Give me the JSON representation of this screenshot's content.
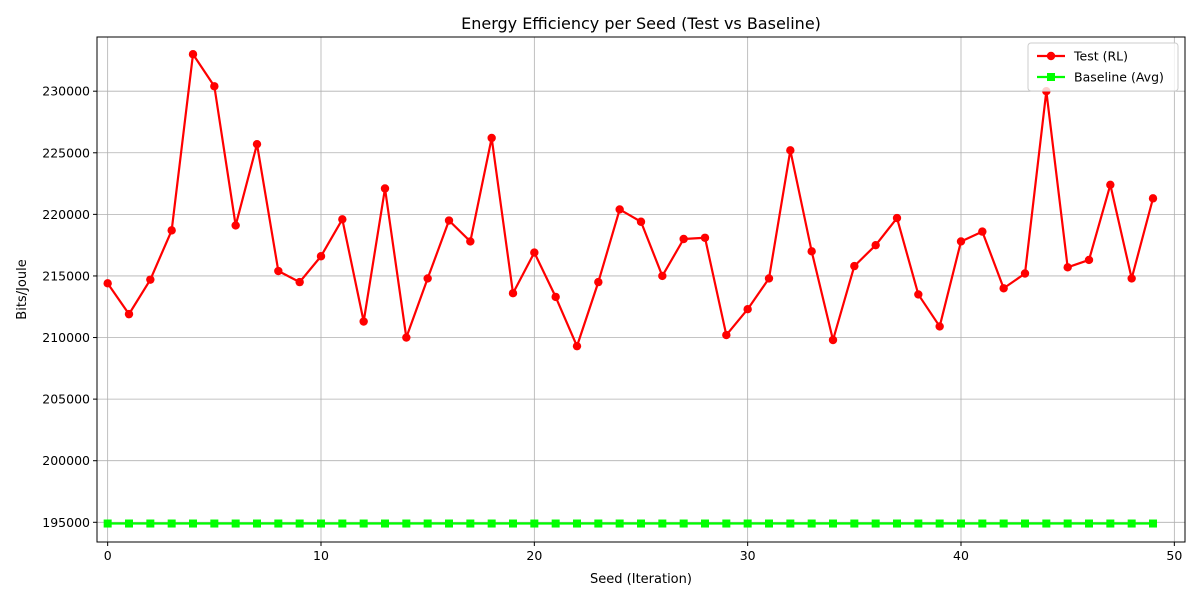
{
  "chart_data": {
    "type": "line",
    "title": "Energy Efficiency per Seed (Test vs Baseline)",
    "xlabel": "Seed (Iteration)",
    "ylabel": "Bits/Joule",
    "xlim": [
      -0.5,
      50.5
    ],
    "ylim": [
      193400,
      234400
    ],
    "xticks": [
      0,
      10,
      20,
      30,
      40,
      50
    ],
    "yticks": [
      195000,
      200000,
      205000,
      210000,
      215000,
      220000,
      225000,
      230000
    ],
    "grid": true,
    "legend_position": "top-right",
    "series": [
      {
        "name": "Test (RL)",
        "color": "#ff0000",
        "marker": "circle",
        "x": [
          0,
          1,
          2,
          3,
          4,
          5,
          6,
          7,
          8,
          9,
          10,
          11,
          12,
          13,
          14,
          15,
          16,
          17,
          18,
          19,
          20,
          21,
          22,
          23,
          24,
          25,
          26,
          27,
          28,
          29,
          30,
          31,
          32,
          33,
          34,
          35,
          36,
          37,
          38,
          39,
          40,
          41,
          42,
          43,
          44,
          45,
          46,
          47,
          48,
          49
        ],
        "values": [
          214400,
          211900,
          214700,
          218700,
          233000,
          230400,
          219100,
          225700,
          215400,
          214500,
          216600,
          219600,
          211300,
          222100,
          210000,
          214800,
          219500,
          217800,
          226200,
          213600,
          216900,
          213300,
          209300,
          214500,
          220400,
          219400,
          215000,
          218000,
          218100,
          210200,
          212300,
          214800,
          225200,
          217000,
          209800,
          215800,
          217500,
          219700,
          213500,
          210900,
          217800,
          218600,
          214000,
          215200,
          230000,
          215700,
          216300,
          222400,
          214800,
          221300
        ]
      },
      {
        "name": "Baseline (Avg)",
        "color": "#00ff00",
        "marker": "square",
        "x": [
          0,
          1,
          2,
          3,
          4,
          5,
          6,
          7,
          8,
          9,
          10,
          11,
          12,
          13,
          14,
          15,
          16,
          17,
          18,
          19,
          20,
          21,
          22,
          23,
          24,
          25,
          26,
          27,
          28,
          29,
          30,
          31,
          32,
          33,
          34,
          35,
          36,
          37,
          38,
          39,
          40,
          41,
          42,
          43,
          44,
          45,
          46,
          47,
          48,
          49
        ],
        "values": [
          194900,
          194900,
          194900,
          194900,
          194900,
          194900,
          194900,
          194900,
          194900,
          194900,
          194900,
          194900,
          194900,
          194900,
          194900,
          194900,
          194900,
          194900,
          194900,
          194900,
          194900,
          194900,
          194900,
          194900,
          194900,
          194900,
          194900,
          194900,
          194900,
          194900,
          194900,
          194900,
          194900,
          194900,
          194900,
          194900,
          194900,
          194900,
          194900,
          194900,
          194900,
          194900,
          194900,
          194900,
          194900,
          194900,
          194900,
          194900,
          194900,
          194900
        ]
      }
    ]
  }
}
